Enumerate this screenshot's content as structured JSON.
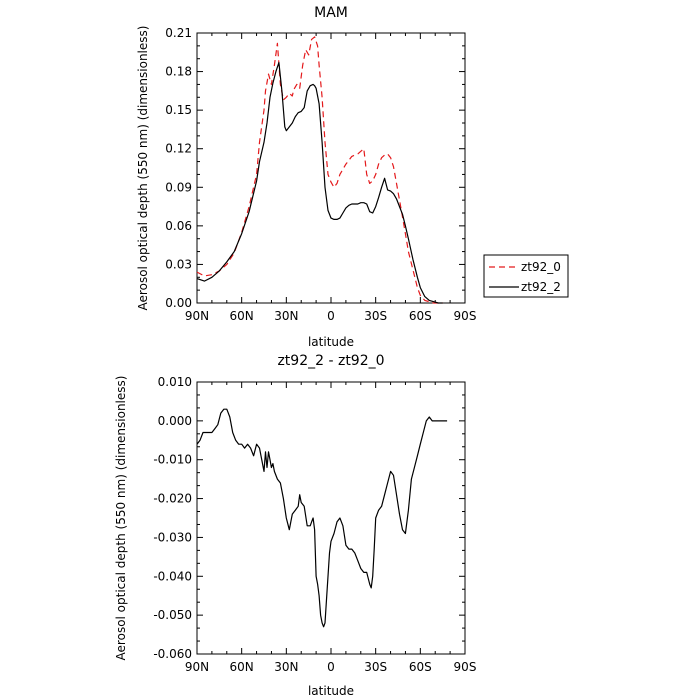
{
  "chart_data": [
    {
      "type": "line",
      "title": "MAM",
      "xlabel": "latitude",
      "ylabel": "Aerosol optical depth (550 nm) (dimensionless)",
      "xlim": [
        90,
        -90
      ],
      "ylim": [
        0,
        0.21
      ],
      "x_ticks": [
        90,
        60,
        30,
        0,
        -30,
        -60,
        -90
      ],
      "x_tick_labels": [
        "90N",
        "60N",
        "30N",
        "0",
        "30S",
        "60S",
        "90S"
      ],
      "y_ticks": [
        0,
        0.03,
        0.06,
        0.09,
        0.12,
        0.15,
        0.18,
        0.21
      ],
      "y_tick_labels": [
        "0.00",
        "0.03",
        "0.06",
        "0.09",
        "0.12",
        "0.15",
        "0.18",
        "0.21"
      ],
      "legend": {
        "placement": "outside-right"
      },
      "series": [
        {
          "name": "zt92_0",
          "color": "#e41a1c",
          "dash": "dashed",
          "x": [
            90,
            85,
            80,
            75,
            70,
            65,
            60,
            55,
            50,
            48,
            45,
            44,
            42,
            40,
            38,
            36,
            34,
            32,
            30,
            28,
            26,
            25,
            23,
            21,
            19,
            17,
            15,
            13,
            11,
            9,
            8,
            6,
            4,
            2,
            0,
            -2,
            -4,
            -6,
            -8,
            -10,
            -12,
            -14,
            -16,
            -18,
            -20,
            -22,
            -24,
            -26,
            -28,
            -30,
            -32,
            -34,
            -36,
            -38,
            -40,
            -42,
            -44,
            -46,
            -48,
            -50,
            -52,
            -55,
            -58,
            -60,
            -63,
            -66,
            -69,
            -72,
            -75
          ],
          "values": [
            0.024,
            0.021,
            0.022,
            0.025,
            0.03,
            0.039,
            0.055,
            0.075,
            0.1,
            0.125,
            0.15,
            0.165,
            0.178,
            0.17,
            0.185,
            0.202,
            0.17,
            0.158,
            0.16,
            0.163,
            0.161,
            0.166,
            0.17,
            0.167,
            0.185,
            0.197,
            0.193,
            0.205,
            0.207,
            0.2,
            0.185,
            0.16,
            0.125,
            0.1,
            0.094,
            0.09,
            0.093,
            0.1,
            0.104,
            0.108,
            0.111,
            0.114,
            0.115,
            0.116,
            0.118,
            0.12,
            0.1,
            0.093,
            0.095,
            0.1,
            0.108,
            0.113,
            0.115,
            0.116,
            0.113,
            0.106,
            0.093,
            0.08,
            0.067,
            0.054,
            0.04,
            0.026,
            0.012,
            0.006,
            0.002,
            0.001,
            0.0,
            0.0,
            0.0
          ]
        },
        {
          "name": "zt92_2",
          "color": "#000000",
          "dash": "solid",
          "x": [
            90,
            85,
            80,
            75,
            70,
            65,
            60,
            55,
            50,
            48,
            45,
            43,
            41,
            39,
            37,
            35,
            33,
            31,
            30,
            28,
            26,
            24,
            22,
            20,
            18,
            16,
            14,
            12,
            11,
            10,
            8,
            6,
            4,
            2,
            0,
            -2,
            -4,
            -6,
            -8,
            -10,
            -12,
            -14,
            -16,
            -18,
            -20,
            -22,
            -24,
            -26,
            -28,
            -30,
            -32,
            -34,
            -36,
            -38,
            -40,
            -42,
            -44,
            -46,
            -48,
            -50,
            -52,
            -55,
            -58,
            -60,
            -63,
            -66,
            -69,
            -72,
            -75
          ],
          "values": [
            0.019,
            0.017,
            0.02,
            0.025,
            0.032,
            0.04,
            0.054,
            0.071,
            0.095,
            0.11,
            0.125,
            0.14,
            0.16,
            0.171,
            0.18,
            0.187,
            0.165,
            0.137,
            0.134,
            0.137,
            0.14,
            0.145,
            0.148,
            0.149,
            0.152,
            0.165,
            0.169,
            0.17,
            0.169,
            0.167,
            0.155,
            0.125,
            0.09,
            0.072,
            0.066,
            0.065,
            0.065,
            0.066,
            0.07,
            0.074,
            0.076,
            0.077,
            0.077,
            0.077,
            0.078,
            0.078,
            0.077,
            0.071,
            0.07,
            0.075,
            0.082,
            0.09,
            0.097,
            0.088,
            0.087,
            0.085,
            0.081,
            0.075,
            0.069,
            0.06,
            0.05,
            0.034,
            0.02,
            0.012,
            0.005,
            0.002,
            0.001,
            0.0,
            0.0
          ]
        }
      ]
    },
    {
      "type": "line",
      "title": "zt92_2 - zt92_0",
      "xlabel": "latitude",
      "ylabel": "Aerosol optical depth (550 nm) (dimensionless)",
      "xlim": [
        90,
        -90
      ],
      "ylim": [
        -0.06,
        0.01
      ],
      "x_ticks": [
        90,
        60,
        30,
        0,
        -30,
        -60,
        -90
      ],
      "x_tick_labels": [
        "90N",
        "60N",
        "30N",
        "0",
        "30S",
        "60S",
        "90S"
      ],
      "y_ticks": [
        -0.06,
        -0.05,
        -0.04,
        -0.03,
        -0.02,
        -0.01,
        0.0,
        0.01
      ],
      "y_tick_labels": [
        "-0.060",
        "-0.050",
        "-0.040",
        "-0.030",
        "-0.020",
        "-0.010",
        "0.000",
        "0.010"
      ],
      "series": [
        {
          "name": "",
          "color": "#000000",
          "dash": "solid",
          "x": [
            90,
            88,
            86,
            84,
            82,
            80,
            78,
            76,
            74,
            72,
            70,
            68,
            66,
            64,
            62,
            60,
            58,
            56,
            54,
            52,
            50,
            48,
            46,
            45,
            44,
            43,
            42,
            41,
            40,
            39,
            38,
            36,
            34,
            32,
            30,
            28,
            26,
            24,
            22,
            21,
            20,
            18,
            16,
            14,
            13,
            12,
            11,
            10,
            9,
            8,
            7,
            6,
            5,
            4,
            3,
            2,
            1,
            0,
            -2,
            -4,
            -6,
            -8,
            -10,
            -12,
            -14,
            -16,
            -18,
            -20,
            -22,
            -24,
            -26,
            -27,
            -28,
            -29,
            -30,
            -32,
            -34,
            -36,
            -38,
            -40,
            -42,
            -44,
            -46,
            -48,
            -50,
            -52,
            -54,
            -56,
            -58,
            -60,
            -62,
            -64,
            -66,
            -68,
            -70,
            -72,
            -74,
            -76,
            -77,
            -78
          ],
          "values": [
            -0.006,
            -0.005,
            -0.003,
            -0.003,
            -0.003,
            -0.003,
            -0.002,
            -0.001,
            0.002,
            0.003,
            0.003,
            0.001,
            -0.003,
            -0.005,
            -0.006,
            -0.006,
            -0.007,
            -0.006,
            -0.007,
            -0.009,
            -0.006,
            -0.007,
            -0.011,
            -0.013,
            -0.008,
            -0.012,
            -0.008,
            -0.01,
            -0.012,
            -0.011,
            -0.013,
            -0.015,
            -0.016,
            -0.02,
            -0.025,
            -0.028,
            -0.024,
            -0.023,
            -0.022,
            -0.019,
            -0.021,
            -0.022,
            -0.027,
            -0.027,
            -0.026,
            -0.025,
            -0.028,
            -0.04,
            -0.042,
            -0.045,
            -0.05,
            -0.052,
            -0.053,
            -0.052,
            -0.046,
            -0.04,
            -0.034,
            -0.031,
            -0.029,
            -0.026,
            -0.025,
            -0.027,
            -0.032,
            -0.033,
            -0.033,
            -0.034,
            -0.036,
            -0.038,
            -0.039,
            -0.039,
            -0.042,
            -0.043,
            -0.04,
            -0.033,
            -0.025,
            -0.023,
            -0.022,
            -0.019,
            -0.016,
            -0.013,
            -0.014,
            -0.019,
            -0.024,
            -0.028,
            -0.029,
            -0.023,
            -0.015,
            -0.012,
            -0.009,
            -0.006,
            -0.003,
            0.0,
            0.001,
            0.0,
            0.0,
            0.0,
            0.0,
            0.0,
            0.0,
            0.0
          ]
        }
      ]
    }
  ]
}
